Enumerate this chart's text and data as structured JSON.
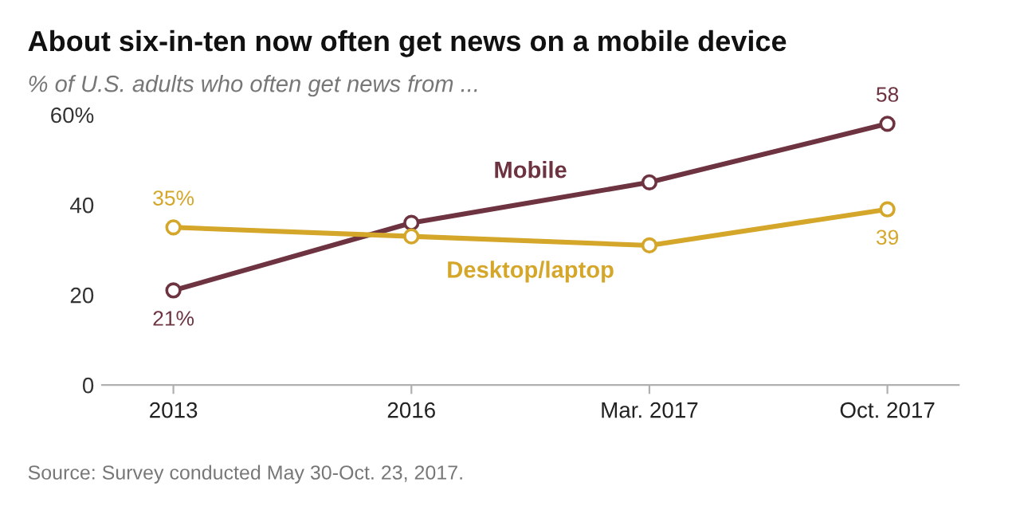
{
  "chart_data": {
    "type": "line",
    "title": "About six-in-ten now often get news on a mobile device",
    "subtitle": "% of U.S. adults who often get news from ...",
    "categories": [
      "2013",
      "2016",
      "Mar. 2017",
      "Oct. 2017"
    ],
    "series": [
      {
        "name": "Mobile",
        "color": "#6e3340",
        "values": [
          21,
          36,
          45,
          58
        ],
        "value_labels": [
          "21%",
          null,
          null,
          "58"
        ]
      },
      {
        "name": "Desktop/laptop",
        "color": "#d4a62a",
        "values": [
          35,
          33,
          31,
          39
        ],
        "value_labels": [
          "35%",
          null,
          null,
          "39"
        ]
      }
    ],
    "ylim": [
      0,
      60
    ],
    "yticks": [
      0,
      20,
      40,
      {
        "value": 60,
        "label": "60%"
      }
    ],
    "grid": false,
    "legend": false,
    "marker": "circle",
    "line_style": "solid",
    "annotations": [
      "Source: Survey conducted May 30-Oct. 23, 2017."
    ]
  }
}
